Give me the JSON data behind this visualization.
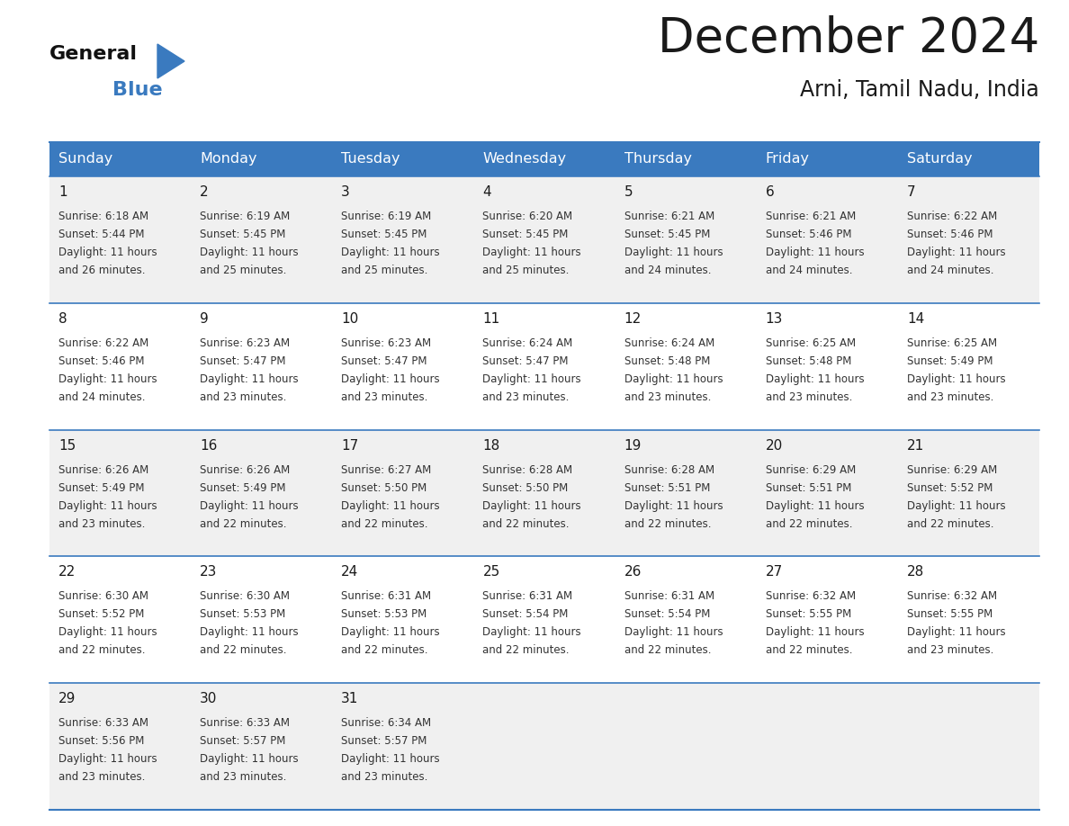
{
  "title": "December 2024",
  "subtitle": "Arni, Tamil Nadu, India",
  "header_color": "#3a7abf",
  "header_text_color": "#ffffff",
  "cell_bg_odd": "#f0f0f0",
  "cell_bg_even": "#ffffff",
  "border_color": "#3a7abf",
  "text_color": "#1a1a1a",
  "days_of_week": [
    "Sunday",
    "Monday",
    "Tuesday",
    "Wednesday",
    "Thursday",
    "Friday",
    "Saturday"
  ],
  "calendar_data": [
    [
      {
        "day": 1,
        "sunrise": "6:18 AM",
        "sunset": "5:44 PM",
        "daylight": "11 hours and 26 minutes"
      },
      {
        "day": 2,
        "sunrise": "6:19 AM",
        "sunset": "5:45 PM",
        "daylight": "11 hours and 25 minutes"
      },
      {
        "day": 3,
        "sunrise": "6:19 AM",
        "sunset": "5:45 PM",
        "daylight": "11 hours and 25 minutes"
      },
      {
        "day": 4,
        "sunrise": "6:20 AM",
        "sunset": "5:45 PM",
        "daylight": "11 hours and 25 minutes"
      },
      {
        "day": 5,
        "sunrise": "6:21 AM",
        "sunset": "5:45 PM",
        "daylight": "11 hours and 24 minutes"
      },
      {
        "day": 6,
        "sunrise": "6:21 AM",
        "sunset": "5:46 PM",
        "daylight": "11 hours and 24 minutes"
      },
      {
        "day": 7,
        "sunrise": "6:22 AM",
        "sunset": "5:46 PM",
        "daylight": "11 hours and 24 minutes"
      }
    ],
    [
      {
        "day": 8,
        "sunrise": "6:22 AM",
        "sunset": "5:46 PM",
        "daylight": "11 hours and 24 minutes"
      },
      {
        "day": 9,
        "sunrise": "6:23 AM",
        "sunset": "5:47 PM",
        "daylight": "11 hours and 23 minutes"
      },
      {
        "day": 10,
        "sunrise": "6:23 AM",
        "sunset": "5:47 PM",
        "daylight": "11 hours and 23 minutes"
      },
      {
        "day": 11,
        "sunrise": "6:24 AM",
        "sunset": "5:47 PM",
        "daylight": "11 hours and 23 minutes"
      },
      {
        "day": 12,
        "sunrise": "6:24 AM",
        "sunset": "5:48 PM",
        "daylight": "11 hours and 23 minutes"
      },
      {
        "day": 13,
        "sunrise": "6:25 AM",
        "sunset": "5:48 PM",
        "daylight": "11 hours and 23 minutes"
      },
      {
        "day": 14,
        "sunrise": "6:25 AM",
        "sunset": "5:49 PM",
        "daylight": "11 hours and 23 minutes"
      }
    ],
    [
      {
        "day": 15,
        "sunrise": "6:26 AM",
        "sunset": "5:49 PM",
        "daylight": "11 hours and 23 minutes"
      },
      {
        "day": 16,
        "sunrise": "6:26 AM",
        "sunset": "5:49 PM",
        "daylight": "11 hours and 22 minutes"
      },
      {
        "day": 17,
        "sunrise": "6:27 AM",
        "sunset": "5:50 PM",
        "daylight": "11 hours and 22 minutes"
      },
      {
        "day": 18,
        "sunrise": "6:28 AM",
        "sunset": "5:50 PM",
        "daylight": "11 hours and 22 minutes"
      },
      {
        "day": 19,
        "sunrise": "6:28 AM",
        "sunset": "5:51 PM",
        "daylight": "11 hours and 22 minutes"
      },
      {
        "day": 20,
        "sunrise": "6:29 AM",
        "sunset": "5:51 PM",
        "daylight": "11 hours and 22 minutes"
      },
      {
        "day": 21,
        "sunrise": "6:29 AM",
        "sunset": "5:52 PM",
        "daylight": "11 hours and 22 minutes"
      }
    ],
    [
      {
        "day": 22,
        "sunrise": "6:30 AM",
        "sunset": "5:52 PM",
        "daylight": "11 hours and 22 minutes"
      },
      {
        "day": 23,
        "sunrise": "6:30 AM",
        "sunset": "5:53 PM",
        "daylight": "11 hours and 22 minutes"
      },
      {
        "day": 24,
        "sunrise": "6:31 AM",
        "sunset": "5:53 PM",
        "daylight": "11 hours and 22 minutes"
      },
      {
        "day": 25,
        "sunrise": "6:31 AM",
        "sunset": "5:54 PM",
        "daylight": "11 hours and 22 minutes"
      },
      {
        "day": 26,
        "sunrise": "6:31 AM",
        "sunset": "5:54 PM",
        "daylight": "11 hours and 22 minutes"
      },
      {
        "day": 27,
        "sunrise": "6:32 AM",
        "sunset": "5:55 PM",
        "daylight": "11 hours and 22 minutes"
      },
      {
        "day": 28,
        "sunrise": "6:32 AM",
        "sunset": "5:55 PM",
        "daylight": "11 hours and 23 minutes"
      }
    ],
    [
      {
        "day": 29,
        "sunrise": "6:33 AM",
        "sunset": "5:56 PM",
        "daylight": "11 hours and 23 minutes"
      },
      {
        "day": 30,
        "sunrise": "6:33 AM",
        "sunset": "5:57 PM",
        "daylight": "11 hours and 23 minutes"
      },
      {
        "day": 31,
        "sunrise": "6:34 AM",
        "sunset": "5:57 PM",
        "daylight": "11 hours and 23 minutes"
      },
      null,
      null,
      null,
      null
    ]
  ],
  "logo_text1": "General",
  "logo_text2": "Blue",
  "logo_color1": "#111111",
  "logo_color2": "#3a7abf",
  "title_fontsize": 38,
  "subtitle_fontsize": 17,
  "header_fontsize": 11.5,
  "day_number_fontsize": 11,
  "cell_text_fontsize": 8.5
}
